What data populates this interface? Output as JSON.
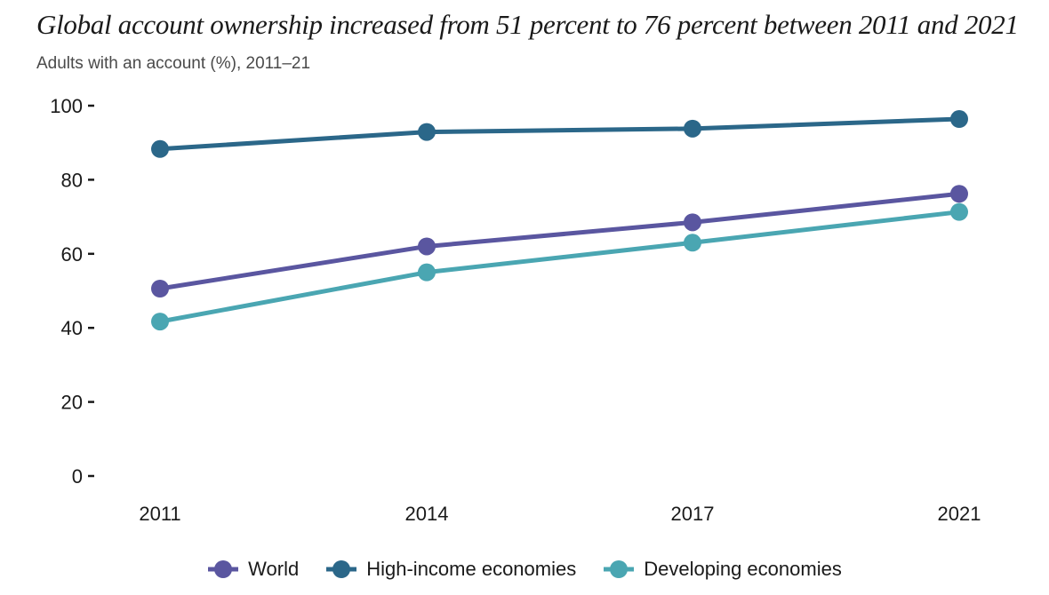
{
  "chart_data": {
    "type": "line",
    "title": "Global account ownership increased from 51 percent to 76 percent between 2011 and 2021",
    "subtitle": "Adults with an account (%), 2011–21",
    "xlabel": "",
    "ylabel": "",
    "categories": [
      "2011",
      "2014",
      "2017",
      "2021"
    ],
    "ylim": [
      0,
      100
    ],
    "yticks": [
      0,
      20,
      40,
      60,
      80,
      100
    ],
    "grid": false,
    "legend_position": "bottom",
    "series": [
      {
        "name": "World",
        "color": "#5a56a0",
        "values": [
          50.6,
          62.0,
          68.5,
          76.2
        ]
      },
      {
        "name": "High-income economies",
        "color": "#2b6789",
        "values": [
          88.3,
          92.9,
          93.8,
          96.4
        ]
      },
      {
        "name": "Developing economies",
        "color": "#4aa6b2",
        "values": [
          41.7,
          55.0,
          63.0,
          71.3
        ]
      }
    ]
  }
}
